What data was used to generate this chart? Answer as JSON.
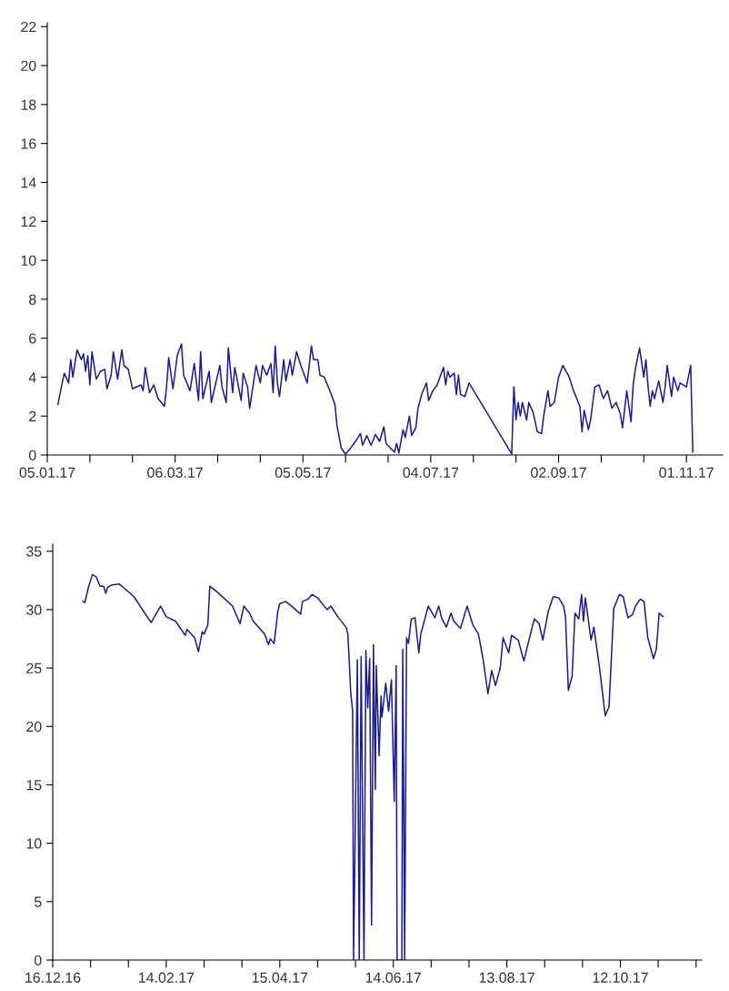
{
  "chart_data": [
    {
      "type": "line",
      "xlim": [
        "2017-01-05",
        "2017-11-18"
      ],
      "ylim": [
        0,
        22.2
      ],
      "yticks": [
        0,
        2,
        4,
        6,
        8,
        10,
        12,
        14,
        16,
        18,
        20,
        22
      ],
      "xticks": [
        {
          "value": "2017-01-05",
          "label": "05.01.17"
        },
        {
          "value": "2017-01-25",
          "label": null
        },
        {
          "value": "2017-02-14",
          "label": null
        },
        {
          "value": "2017-03-06",
          "label": "06.03.17"
        },
        {
          "value": "2017-03-26",
          "label": null
        },
        {
          "value": "2017-04-15",
          "label": null
        },
        {
          "value": "2017-05-05",
          "label": "05.05.17"
        },
        {
          "value": "2017-05-25",
          "label": null
        },
        {
          "value": "2017-06-14",
          "label": null
        },
        {
          "value": "2017-07-04",
          "label": "04.07.17"
        },
        {
          "value": "2017-07-24",
          "label": null
        },
        {
          "value": "2017-08-13",
          "label": null
        },
        {
          "value": "2017-09-02",
          "label": "02.09.17"
        },
        {
          "value": "2017-09-22",
          "label": null
        },
        {
          "value": "2017-10-12",
          "label": null
        },
        {
          "value": "2017-11-01",
          "label": "01.11.17"
        }
      ],
      "grid": false,
      "legend": false,
      "x": [
        "2017-01-10",
        "2017-01-12",
        "2017-01-13",
        "2017-01-15",
        "2017-01-16",
        "2017-01-17",
        "2017-01-19",
        "2017-01-21",
        "2017-01-22",
        "2017-01-23",
        "2017-01-24",
        "2017-01-25",
        "2017-01-26",
        "2017-01-28",
        "2017-01-30",
        "2017-02-01",
        "2017-02-02",
        "2017-02-04",
        "2017-02-05",
        "2017-02-07",
        "2017-02-09",
        "2017-02-10",
        "2017-02-12",
        "2017-02-14",
        "2017-02-18",
        "2017-02-19",
        "2017-02-20",
        "2017-02-22",
        "2017-02-24",
        "2017-02-26",
        "2017-03-01",
        "2017-03-02",
        "2017-03-03",
        "2017-03-05",
        "2017-03-07",
        "2017-03-09",
        "2017-03-10",
        "2017-03-13",
        "2017-03-15",
        "2017-03-17",
        "2017-03-18",
        "2017-03-19",
        "2017-03-22",
        "2017-03-23",
        "2017-03-27",
        "2017-03-28",
        "2017-03-30",
        "2017-03-31",
        "2017-04-02",
        "2017-04-03",
        "2017-04-06",
        "2017-04-07",
        "2017-04-09",
        "2017-04-10",
        "2017-04-13",
        "2017-04-15",
        "2017-04-16",
        "2017-04-18",
        "2017-04-20",
        "2017-04-21",
        "2017-04-22",
        "2017-04-23",
        "2017-04-24",
        "2017-04-26",
        "2017-04-27",
        "2017-04-29",
        "2017-04-30",
        "2017-05-02",
        "2017-05-04",
        "2017-05-07",
        "2017-05-09",
        "2017-05-10",
        "2017-05-12",
        "2017-05-13",
        "2017-05-15",
        "2017-05-18",
        "2017-05-20",
        "2017-05-21",
        "2017-05-23",
        "2017-05-25",
        "2017-05-27",
        "2017-05-30",
        "2017-06-01",
        "2017-06-02",
        "2017-06-04",
        "2017-06-06",
        "2017-06-08",
        "2017-06-10",
        "2017-06-12",
        "2017-06-13",
        "2017-06-16",
        "2017-06-17",
        "2017-06-18",
        "2017-06-19",
        "2017-06-21",
        "2017-06-22",
        "2017-06-24",
        "2017-06-25",
        "2017-06-27",
        "2017-06-28",
        "2017-06-30",
        "2017-07-02",
        "2017-07-03",
        "2017-07-05",
        "2017-07-07",
        "2017-07-08",
        "2017-07-10",
        "2017-07-11",
        "2017-07-12",
        "2017-07-13",
        "2017-07-15",
        "2017-07-16",
        "2017-07-17",
        "2017-07-18",
        "2017-07-20",
        "2017-07-22",
        "2017-08-11",
        "2017-08-12",
        "2017-08-13",
        "2017-08-14",
        "2017-08-15",
        "2017-08-16",
        "2017-08-18",
        "2017-08-19",
        "2017-08-21",
        "2017-08-23",
        "2017-08-25",
        "2017-08-26",
        "2017-08-28",
        "2017-08-29",
        "2017-08-31",
        "2017-09-02",
        "2017-09-04",
        "2017-09-07",
        "2017-09-09",
        "2017-09-12",
        "2017-09-13",
        "2017-09-14",
        "2017-09-16",
        "2017-09-17",
        "2017-09-19",
        "2017-09-21",
        "2017-09-23",
        "2017-09-25",
        "2017-09-27",
        "2017-09-29",
        "2017-10-01",
        "2017-10-02",
        "2017-10-04",
        "2017-10-06",
        "2017-10-07",
        "2017-10-08",
        "2017-10-10",
        "2017-10-12",
        "2017-10-13",
        "2017-10-14",
        "2017-10-15",
        "2017-10-16",
        "2017-10-17",
        "2017-10-19",
        "2017-10-21",
        "2017-10-22",
        "2017-10-23",
        "2017-10-25",
        "2017-10-26",
        "2017-10-28",
        "2017-10-29",
        "2017-11-01",
        "2017-11-03",
        "2017-11-04"
      ],
      "series": [
        {
          "color": "#1c1c8a",
          "values": [
            2.6,
            3.7,
            4.2,
            3.7,
            4.9,
            4.0,
            5.4,
            4.9,
            5.2,
            4.3,
            5.1,
            3.6,
            5.3,
            3.9,
            4.3,
            4.4,
            3.4,
            4.1,
            5.3,
            3.9,
            5.4,
            4.6,
            4.4,
            3.4,
            3.6,
            3.3,
            4.5,
            3.2,
            3.6,
            2.9,
            2.5,
            3.5,
            5.0,
            3.4,
            5.1,
            5.7,
            4.1,
            3.3,
            4.7,
            2.8,
            5.3,
            2.9,
            4.3,
            2.7,
            4.6,
            3.5,
            2.7,
            5.5,
            3.2,
            4.5,
            2.8,
            4.2,
            3.5,
            2.4,
            4.6,
            3.7,
            4.6,
            4.1,
            4.7,
            3.2,
            5.6,
            3.7,
            3.0,
            4.9,
            3.8,
            4.9,
            4.1,
            5.3,
            4.6,
            3.7,
            5.6,
            4.9,
            4.9,
            4.1,
            4.0,
            3.2,
            2.6,
            1.5,
            0.35,
            0.05,
            0.3,
            0.75,
            1.1,
            0.5,
            1.0,
            0.5,
            1.05,
            0.7,
            1.45,
            0.6,
            0.25,
            0.15,
            0.6,
            0.1,
            1.3,
            0.9,
            2.0,
            1.0,
            1.4,
            2.4,
            3.2,
            3.7,
            2.8,
            3.3,
            3.6,
            3.9,
            4.5,
            3.6,
            4.3,
            4.0,
            4.2,
            3.1,
            4.1,
            3.1,
            3.0,
            3.7,
            0.05,
            3.5,
            1.8,
            2.7,
            2.0,
            2.7,
            1.8,
            2.7,
            2.2,
            1.2,
            1.1,
            2.0,
            3.3,
            2.5,
            2.7,
            4.0,
            4.6,
            4.0,
            3.3,
            2.5,
            1.2,
            2.3,
            1.3,
            1.8,
            3.5,
            3.6,
            2.9,
            3.3,
            2.4,
            2.7,
            2.1,
            1.4,
            3.3,
            1.7,
            3.6,
            4.4,
            5.5,
            4.0,
            4.9,
            3.5,
            2.5,
            3.3,
            2.9,
            3.8,
            2.7,
            3.5,
            4.6,
            3.0,
            4.0,
            3.3,
            3.7,
            3.5,
            4.6,
            0.15
          ]
        }
      ]
    },
    {
      "type": "line",
      "xlim": [
        "2016-12-16",
        "2017-11-24"
      ],
      "ylim": [
        0,
        35.6
      ],
      "yticks": [
        0,
        5,
        10,
        15,
        20,
        25,
        30,
        35
      ],
      "xticks": [
        {
          "value": "2016-12-16",
          "label": "16.12.16"
        },
        {
          "value": "2017-01-05",
          "label": null
        },
        {
          "value": "2017-01-25",
          "label": null
        },
        {
          "value": "2017-02-14",
          "label": "14.02.17"
        },
        {
          "value": "2017-03-06",
          "label": null
        },
        {
          "value": "2017-03-26",
          "label": null
        },
        {
          "value": "2017-04-15",
          "label": "15.04.17"
        },
        {
          "value": "2017-05-05",
          "label": null
        },
        {
          "value": "2017-05-25",
          "label": null
        },
        {
          "value": "2017-06-14",
          "label": "14.06.17"
        },
        {
          "value": "2017-07-04",
          "label": null
        },
        {
          "value": "2017-07-24",
          "label": null
        },
        {
          "value": "2017-08-13",
          "label": "13.08.17"
        },
        {
          "value": "2017-09-02",
          "label": null
        },
        {
          "value": "2017-09-22",
          "label": null
        },
        {
          "value": "2017-10-12",
          "label": "12.10.17"
        },
        {
          "value": "2017-11-01",
          "label": null
        },
        {
          "value": "2017-11-21",
          "label": null
        }
      ],
      "grid": false,
      "legend": false,
      "x": [
        "2017-01-01",
        "2017-01-02",
        "2017-01-04",
        "2017-01-06",
        "2017-01-08",
        "2017-01-10",
        "2017-01-12",
        "2017-01-13",
        "2017-01-14",
        "2017-01-16",
        "2017-01-20",
        "2017-01-23",
        "2017-01-28",
        "2017-02-01",
        "2017-02-06",
        "2017-02-11",
        "2017-02-14",
        "2017-02-19",
        "2017-02-24",
        "2017-02-25",
        "2017-03-01",
        "2017-03-03",
        "2017-03-05",
        "2017-03-06",
        "2017-03-08",
        "2017-03-09",
        "2017-03-13",
        "2017-03-21",
        "2017-03-25",
        "2017-03-27",
        "2017-03-30",
        "2017-04-01",
        "2017-04-07",
        "2017-04-09",
        "2017-04-10",
        "2017-04-12",
        "2017-04-14",
        "2017-04-15",
        "2017-04-18",
        "2017-04-22",
        "2017-04-26",
        "2017-04-27",
        "2017-04-30",
        "2017-05-02",
        "2017-05-05",
        "2017-05-10",
        "2017-05-12",
        "2017-05-16",
        "2017-05-20",
        "2017-05-21",
        "2017-05-22T12:00",
        "2017-05-23T12:00",
        "2017-05-24",
        "2017-05-26",
        "2017-05-27",
        "2017-05-28",
        "2017-05-29T12:00",
        "2017-05-30T12:00",
        "2017-05-31T12:00",
        "2017-06-01T12:00",
        "2017-06-02T12:00",
        "2017-06-03T12:00",
        "2017-06-04T12:00",
        "2017-06-05",
        "2017-06-06T12:00",
        "2017-06-07T12:00",
        "2017-06-08",
        "2017-06-10",
        "2017-06-11T12:00",
        "2017-06-13",
        "2017-06-14T12:00",
        "2017-06-15T12:00",
        "2017-06-16",
        "2017-06-18T12:00",
        "2017-06-19",
        "2017-06-20",
        "2017-06-21",
        "2017-06-22",
        "2017-06-23T12:00",
        "2017-06-25T12:00",
        "2017-06-27T12:00",
        "2017-06-28T12:00",
        "2017-06-30",
        "2017-07-02T12:00",
        "2017-07-06",
        "2017-07-08",
        "2017-07-09T12:00",
        "2017-07-12",
        "2017-07-14T12:00",
        "2017-07-16",
        "2017-07-19T12:00",
        "2017-07-21",
        "2017-07-23",
        "2017-07-26",
        "2017-07-29",
        "2017-07-31T12:00",
        "2017-08-03",
        "2017-08-05",
        "2017-08-07",
        "2017-08-09T12:00",
        "2017-08-11",
        "2017-08-14",
        "2017-08-15T12:00",
        "2017-08-19",
        "2017-08-22",
        "2017-08-25",
        "2017-08-27T12:00",
        "2017-08-30",
        "2017-09-01",
        "2017-09-04",
        "2017-09-06T12:00",
        "2017-09-09T12:00",
        "2017-09-12",
        "2017-09-13",
        "2017-09-14T12:00",
        "2017-09-16T12:00",
        "2017-09-18",
        "2017-09-20",
        "2017-09-21T12:00",
        "2017-09-22T12:00",
        "2017-09-23T12:00",
        "2017-09-26T12:00",
        "2017-09-28",
        "2017-10-01",
        "2017-10-04",
        "2017-10-06",
        "2017-10-08T12:00",
        "2017-10-11T12:00",
        "2017-10-13T12:00",
        "2017-10-16",
        "2017-10-18T12:00",
        "2017-10-20",
        "2017-10-22T12:00",
        "2017-10-24T12:00",
        "2017-10-26T12:00",
        "2017-10-29T12:00",
        "2017-10-31",
        "2017-11-01T12:00",
        "2017-11-03T12:00"
      ],
      "series": [
        {
          "color": "#1c1c8a",
          "values": [
            30.7,
            30.6,
            32.0,
            33.0,
            32.8,
            32.0,
            32.0,
            31.4,
            31.9,
            32.1,
            32.2,
            31.8,
            31.1,
            30.1,
            28.9,
            30.3,
            29.4,
            29.0,
            27.8,
            28.3,
            27.6,
            26.4,
            28.1,
            27.9,
            28.7,
            32.0,
            31.5,
            30.3,
            28.8,
            30.3,
            29.7,
            29.0,
            27.9,
            27.0,
            27.5,
            27.1,
            29.9,
            30.5,
            30.7,
            30.2,
            29.6,
            30.7,
            30.9,
            31.3,
            31.0,
            30.0,
            30.3,
            29.3,
            28.5,
            27.9,
            22.9,
            21.3,
            0,
            25.7,
            0,
            26.0,
            0,
            26.5,
            21.6,
            25.8,
            3.0,
            27.0,
            14.6,
            25.2,
            17.5,
            22.6,
            20.8,
            23.7,
            21.3,
            24.0,
            13.6,
            25.2,
            0,
            0,
            26.6,
            0,
            27.6,
            27.1,
            29.2,
            29.3,
            26.3,
            27.9,
            28.8,
            30.3,
            29.3,
            30.3,
            29.3,
            28.5,
            29.7,
            29.0,
            28.4,
            29.2,
            30.3,
            28.7,
            27.9,
            25.7,
            22.8,
            24.8,
            23.5,
            25.0,
            27.6,
            26.3,
            27.8,
            27.4,
            25.6,
            27.6,
            29.2,
            28.8,
            27.4,
            29.9,
            31.1,
            31.0,
            30.3,
            29.4,
            23.1,
            24.3,
            29.7,
            29.2,
            31.3,
            29.0,
            31.0,
            27.4,
            28.5,
            25.0,
            20.9,
            21.7,
            30.1,
            31.3,
            31.1,
            29.3,
            29.6,
            30.3,
            30.9,
            30.7,
            27.6,
            25.8,
            26.6,
            29.7,
            29.4
          ]
        }
      ]
    }
  ]
}
